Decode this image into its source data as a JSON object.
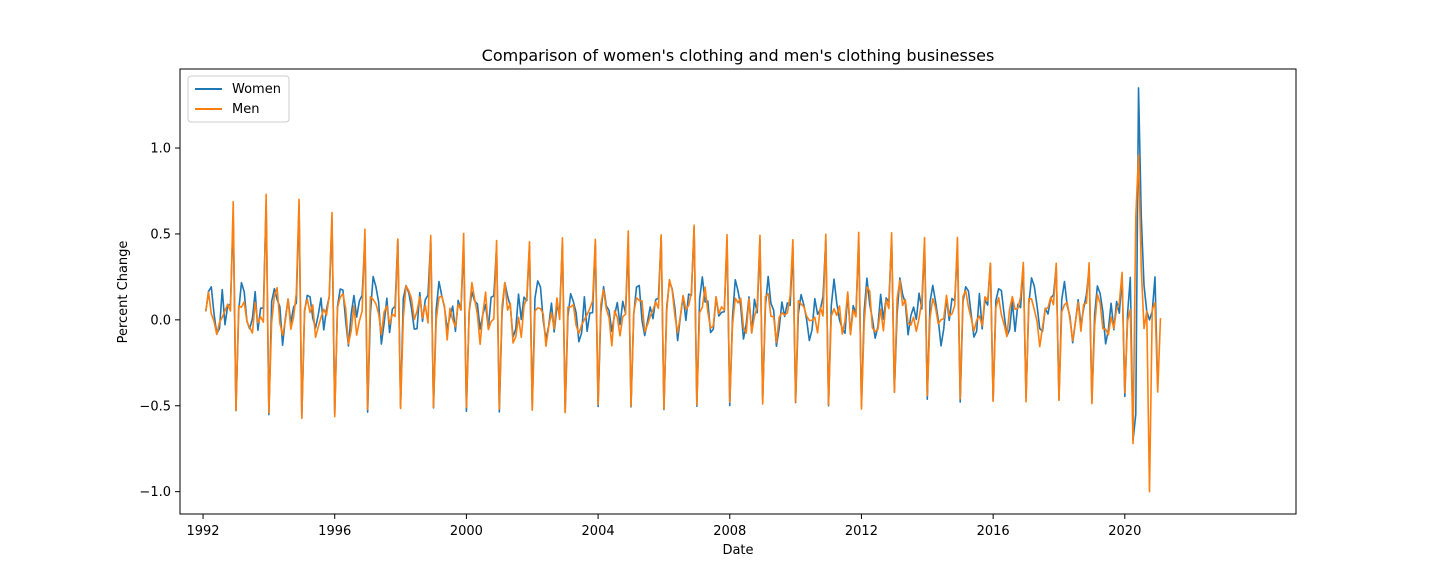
{
  "chart_data": {
    "type": "line",
    "title": "Comparison of women's clothing and men's clothing businesses",
    "xlabel": "Date",
    "ylabel": "Percent Change",
    "x_ticks": [
      "1992",
      "1996",
      "2000",
      "2004",
      "2008",
      "2012",
      "2016",
      "2020"
    ],
    "y_ticks": [
      "−1.0",
      "−0.5",
      "0.0",
      "0.5",
      "1.0"
    ],
    "xlim": [
      1991.3,
      2025.2
    ],
    "ylim": [
      -1.13,
      1.46
    ],
    "grid": false,
    "legend_position": "upper-left",
    "series": [
      {
        "name": "Women",
        "color": "#1f77b4",
        "start": 1992.0833,
        "step_months": 1,
        "pattern": [
          0.07,
          0.2,
          0.14,
          0.05,
          -0.1,
          -0.02,
          0.12,
          -0.02,
          0.1,
          0.09,
          0.22,
          0.65,
          -0.5
        ],
        "peaks": [
          0.65,
          0.72,
          0.67,
          0.6,
          0.52,
          0.47,
          0.47,
          0.47,
          0.46,
          0.46,
          0.45,
          0.45,
          0.48,
          0.5,
          0.54,
          0.5,
          0.47,
          0.46,
          0.48,
          0.49,
          0.48,
          0.47,
          0.45,
          0.33,
          0.33,
          0.33,
          0.33,
          0.3,
          0.33
        ],
        "troughs": [
          -0.55,
          -0.57,
          -0.58,
          -0.57,
          -0.54,
          -0.52,
          -0.52,
          -0.54,
          -0.54,
          -0.53,
          -0.54,
          -0.52,
          -0.52,
          -0.54,
          -0.52,
          -0.5,
          -0.49,
          -0.49,
          -0.51,
          -0.52,
          -0.44,
          -0.47,
          -0.48,
          -0.49,
          -0.48,
          -0.47,
          -0.49,
          -0.45
        ],
        "covid": {
          "2020.25": -0.7,
          "2020.333": -0.55,
          "2020.4167": 1.35,
          "2020.5": 0.6,
          "2020.5833": 0.2,
          "2020.6667": 0.05,
          "2020.75": 0.0,
          "2020.8333": 0.05,
          "2020.9167": 0.25,
          "2021.0": -0.4
        }
      },
      {
        "name": "Men",
        "color": "#ff7f0e",
        "start": 1992.0833,
        "step_months": 1,
        "covid": {
          "2020.25": -0.72,
          "2020.333": 0.6,
          "2020.4167": 0.96,
          "2020.5": 0.3,
          "2020.5833": -0.05,
          "2020.6667": 0.05,
          "2020.75": -1.0,
          "2020.8333": 0.06,
          "2020.9167": 0.1,
          "2021.0": -0.42,
          "2021.0833": 0.01
        }
      }
    ]
  }
}
